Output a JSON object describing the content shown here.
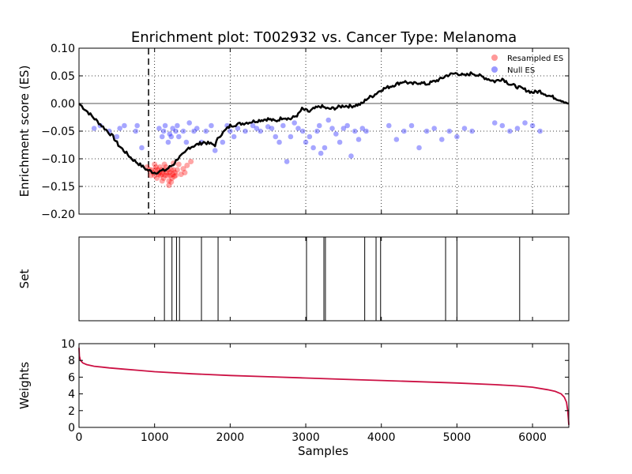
{
  "chart_data": {
    "title": "Enrichment plot: T002932 vs. Cancer Type: Melanoma",
    "x_range": [
      0,
      6480
    ],
    "x_ticks": [
      0,
      1000,
      2000,
      3000,
      4000,
      5000,
      6000
    ],
    "x_tick_labels": [
      "0",
      "1000",
      "2000",
      "3000",
      "4000",
      "5000",
      "6000"
    ],
    "xlabel": "Samples",
    "panels": [
      {
        "id": "es",
        "type": "line",
        "ylabel": "Enrichment score (ES)",
        "ylim": [
          -0.2,
          0.1
        ],
        "y_ticks": [
          0.1,
          0.05,
          0.0,
          -0.05,
          -0.1,
          -0.15,
          -0.2
        ],
        "y_tick_labels": [
          "0.10",
          "0.05",
          "0.00",
          "−0.05",
          "−0.10",
          "−0.15",
          "−0.20"
        ],
        "grid": true,
        "legend_position": "top-right",
        "legend": [
          {
            "label": "Resampled ES",
            "color": "#ff9999"
          },
          {
            "label": "Null ES",
            "color": "#9999ff"
          }
        ],
        "vline_x": 920,
        "running_es": {
          "color": "#000000",
          "x": [
            0,
            150,
            300,
            450,
            520,
            700,
            900,
            1000,
            1150,
            1250,
            1300,
            1400,
            1450,
            1550,
            1650,
            1800,
            1850,
            2000,
            2200,
            2400,
            2500,
            2600,
            2700,
            2800,
            2900,
            2950,
            3050,
            3100,
            3200,
            3300,
            3400,
            3500,
            3600,
            3700,
            3750,
            3800,
            3900,
            4000,
            4100,
            4200,
            4300,
            4400,
            4500,
            4600,
            4700,
            4800,
            4850,
            4900,
            5000,
            5100,
            5200,
            5300,
            5400,
            5500,
            5600,
            5700,
            5800,
            5900,
            6000,
            6100,
            6200,
            6300,
            6400,
            6480
          ],
          "y": [
            0.0,
            -0.02,
            -0.04,
            -0.06,
            -0.075,
            -0.1,
            -0.12,
            -0.125,
            -0.12,
            -0.11,
            -0.1,
            -0.09,
            -0.08,
            -0.075,
            -0.07,
            -0.075,
            -0.06,
            -0.04,
            -0.035,
            -0.03,
            -0.028,
            -0.032,
            -0.025,
            -0.028,
            -0.02,
            -0.01,
            -0.015,
            -0.01,
            -0.005,
            -0.01,
            -0.008,
            -0.004,
            -0.005,
            -0.002,
            0.0,
            0.008,
            0.015,
            0.025,
            0.03,
            0.035,
            0.04,
            0.035,
            0.038,
            0.035,
            0.04,
            0.045,
            0.05,
            0.052,
            0.055,
            0.05,
            0.055,
            0.05,
            0.045,
            0.04,
            0.045,
            0.035,
            0.03,
            0.025,
            0.02,
            0.022,
            0.015,
            0.01,
            0.005,
            0.0
          ]
        },
        "resampled_es": {
          "color": "#ff0000",
          "points": [
            [
              900,
              -0.115
            ],
            [
              930,
              -0.12
            ],
            [
              950,
              -0.13
            ],
            [
              960,
              -0.12
            ],
            [
              980,
              -0.125
            ],
            [
              1000,
              -0.13
            ],
            [
              1010,
              -0.12
            ],
            [
              1020,
              -0.115
            ],
            [
              1030,
              -0.135
            ],
            [
              1040,
              -0.12
            ],
            [
              1050,
              -0.128
            ],
            [
              1060,
              -0.125
            ],
            [
              1070,
              -0.115
            ],
            [
              1080,
              -0.13
            ],
            [
              1090,
              -0.12
            ],
            [
              1100,
              -0.128
            ],
            [
              1110,
              -0.125
            ],
            [
              1120,
              -0.135
            ],
            [
              1130,
              -0.12
            ],
            [
              1140,
              -0.13
            ],
            [
              1150,
              -0.115
            ],
            [
              1160,
              -0.125
            ],
            [
              1170,
              -0.13
            ],
            [
              1180,
              -0.12
            ],
            [
              1190,
              -0.14
            ],
            [
              1200,
              -0.125
            ],
            [
              1210,
              -0.13
            ],
            [
              1220,
              -0.12
            ],
            [
              1230,
              -0.135
            ],
            [
              1240,
              -0.128
            ],
            [
              1250,
              -0.12
            ],
            [
              1260,
              -0.132
            ],
            [
              1270,
              -0.125
            ],
            [
              1280,
              -0.13
            ],
            [
              1300,
              -0.12
            ],
            [
              1320,
              -0.11
            ],
            [
              1350,
              -0.128
            ],
            [
              1380,
              -0.118
            ],
            [
              1400,
              -0.125
            ],
            [
              1430,
              -0.112
            ],
            [
              1480,
              -0.105
            ],
            [
              1190,
              -0.148
            ],
            [
              1220,
              -0.142
            ],
            [
              1100,
              -0.14
            ],
            [
              1250,
              -0.108
            ],
            [
              1000,
              -0.11
            ],
            [
              1130,
              -0.11
            ]
          ]
        },
        "null_es": {
          "color": "#0000ff",
          "points": [
            [
              200,
              -0.045
            ],
            [
              280,
              -0.04
            ],
            [
              400,
              -0.05
            ],
            [
              500,
              -0.06
            ],
            [
              540,
              -0.045
            ],
            [
              600,
              -0.04
            ],
            [
              750,
              -0.05
            ],
            [
              770,
              -0.04
            ],
            [
              830,
              -0.08
            ],
            [
              1060,
              -0.045
            ],
            [
              1100,
              -0.06
            ],
            [
              1120,
              -0.05
            ],
            [
              1140,
              -0.04
            ],
            [
              1180,
              -0.07
            ],
            [
              1200,
              -0.055
            ],
            [
              1220,
              -0.06
            ],
            [
              1240,
              -0.045
            ],
            [
              1280,
              -0.05
            ],
            [
              1300,
              -0.04
            ],
            [
              1320,
              -0.06
            ],
            [
              1380,
              -0.05
            ],
            [
              1420,
              -0.07
            ],
            [
              1460,
              -0.035
            ],
            [
              1520,
              -0.05
            ],
            [
              1560,
              -0.045
            ],
            [
              1620,
              -0.07
            ],
            [
              1680,
              -0.05
            ],
            [
              1750,
              -0.04
            ],
            [
              1800,
              -0.085
            ],
            [
              1900,
              -0.07
            ],
            [
              1960,
              -0.04
            ],
            [
              2000,
              -0.05
            ],
            [
              2050,
              -0.06
            ],
            [
              2100,
              -0.045
            ],
            [
              2200,
              -0.05
            ],
            [
              2300,
              -0.04
            ],
            [
              2350,
              -0.045
            ],
            [
              2400,
              -0.05
            ],
            [
              2500,
              -0.042
            ],
            [
              2550,
              -0.045
            ],
            [
              2600,
              -0.06
            ],
            [
              2650,
              -0.07
            ],
            [
              2700,
              -0.04
            ],
            [
              2750,
              -0.105
            ],
            [
              2800,
              -0.06
            ],
            [
              2850,
              -0.035
            ],
            [
              2900,
              -0.045
            ],
            [
              2960,
              -0.05
            ],
            [
              3000,
              -0.07
            ],
            [
              3050,
              -0.06
            ],
            [
              3100,
              -0.08
            ],
            [
              3150,
              -0.05
            ],
            [
              3180,
              -0.04
            ],
            [
              3200,
              -0.09
            ],
            [
              3250,
              -0.08
            ],
            [
              3300,
              -0.03
            ],
            [
              3350,
              -0.045
            ],
            [
              3400,
              -0.055
            ],
            [
              3450,
              -0.07
            ],
            [
              3500,
              -0.045
            ],
            [
              3550,
              -0.04
            ],
            [
              3600,
              -0.095
            ],
            [
              3650,
              -0.05
            ],
            [
              3700,
              -0.065
            ],
            [
              3750,
              -0.045
            ],
            [
              3800,
              -0.05
            ],
            [
              4100,
              -0.04
            ],
            [
              4200,
              -0.065
            ],
            [
              4300,
              -0.05
            ],
            [
              4400,
              -0.04
            ],
            [
              4500,
              -0.08
            ],
            [
              4600,
              -0.05
            ],
            [
              4700,
              -0.045
            ],
            [
              4800,
              -0.065
            ],
            [
              4900,
              -0.05
            ],
            [
              5000,
              -0.06
            ],
            [
              5100,
              -0.045
            ],
            [
              5200,
              -0.05
            ],
            [
              5500,
              -0.035
            ],
            [
              5600,
              -0.04
            ],
            [
              5700,
              -0.05
            ],
            [
              5800,
              -0.045
            ],
            [
              5900,
              -0.035
            ],
            [
              6000,
              -0.04
            ],
            [
              6100,
              -0.05
            ]
          ]
        }
      },
      {
        "id": "set",
        "type": "rug",
        "ylabel": "Set",
        "positions": [
          1130,
          1230,
          1290,
          1330,
          1620,
          1840,
          3010,
          3240,
          3260,
          3780,
          3930,
          3990,
          4850,
          5000,
          5830
        ]
      },
      {
        "id": "weights",
        "type": "line",
        "ylabel": "Weights",
        "ylim": [
          0,
          10
        ],
        "y_ticks": [
          0,
          2,
          4,
          6,
          8,
          10
        ],
        "y_tick_labels": [
          "0",
          "2",
          "4",
          "6",
          "8",
          "10"
        ],
        "color": "#cc1144",
        "x": [
          0,
          5,
          20,
          50,
          100,
          200,
          400,
          600,
          800,
          1000,
          1500,
          2000,
          2500,
          3000,
          3500,
          4000,
          4500,
          5000,
          5500,
          5800,
          6000,
          6200,
          6300,
          6380,
          6420,
          6450,
          6465,
          6475,
          6480
        ],
        "y": [
          9.5,
          8.5,
          8.0,
          7.7,
          7.5,
          7.3,
          7.1,
          6.95,
          6.8,
          6.65,
          6.4,
          6.2,
          6.05,
          5.9,
          5.75,
          5.6,
          5.45,
          5.3,
          5.1,
          4.95,
          4.8,
          4.5,
          4.3,
          4.0,
          3.6,
          3.0,
          2.0,
          1.0,
          0.3
        ]
      }
    ]
  }
}
